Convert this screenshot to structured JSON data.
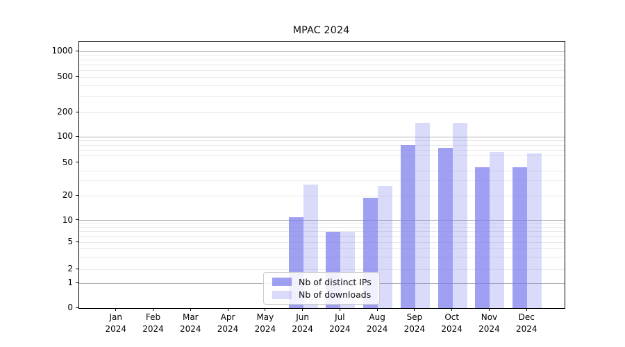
{
  "title": "MPAC 2024",
  "chart_data": {
    "type": "bar",
    "title": "MPAC 2024",
    "categories": [
      "Jan 2024",
      "Feb 2024",
      "Mar 2024",
      "Apr 2024",
      "May 2024",
      "Jun 2024",
      "Jul 2024",
      "Aug 2024",
      "Sep 2024",
      "Oct 2024",
      "Nov 2024",
      "Dec 2024"
    ],
    "x_tick_months": [
      "Jan",
      "Feb",
      "Mar",
      "Apr",
      "May",
      "Jun",
      "Jul",
      "Aug",
      "Sep",
      "Oct",
      "Nov",
      "Dec"
    ],
    "x_tick_year": "2024",
    "series": [
      {
        "name": "Nb of distinct IPs",
        "color": "rgba(123,123,237,0.72)",
        "values": [
          0,
          0,
          0,
          0,
          0,
          11,
          7,
          19,
          80,
          75,
          44,
          44
        ]
      },
      {
        "name": "Nb of downloads",
        "color": "rgba(123,123,237,0.28)",
        "values": [
          0,
          0,
          0,
          0,
          0,
          27,
          7,
          26,
          150,
          150,
          67,
          64
        ]
      }
    ],
    "xlabel": "",
    "ylabel": "",
    "y_ticks": [
      0,
      1,
      2,
      5,
      10,
      20,
      50,
      100,
      200,
      500,
      1000
    ],
    "y_major_gridlines": [
      1,
      10,
      100,
      1000
    ],
    "y_minor_gridlines": [
      2,
      3,
      4,
      5,
      6,
      7,
      8,
      9,
      20,
      30,
      40,
      60,
      70,
      80,
      90,
      200,
      300,
      400,
      500,
      600,
      700,
      800,
      900
    ],
    "ylim": [
      0,
      1300
    ],
    "y_scale": "log-like (compressed linear below 10, log above)",
    "grid": true,
    "legend_position": "lower center",
    "legend_entries": [
      "Nb of distinct IPs",
      "Nb of downloads"
    ]
  },
  "colors": {
    "bar_base": "#7b7bed",
    "bar_dark": "rgba(123,123,237,0.72)",
    "bar_light": "rgba(123,123,237,0.28)",
    "grid_major": "#b3b3b3",
    "grid_minor": "#e9e9e9",
    "spine": "#000000",
    "background": "#ffffff",
    "text": "#000000"
  }
}
